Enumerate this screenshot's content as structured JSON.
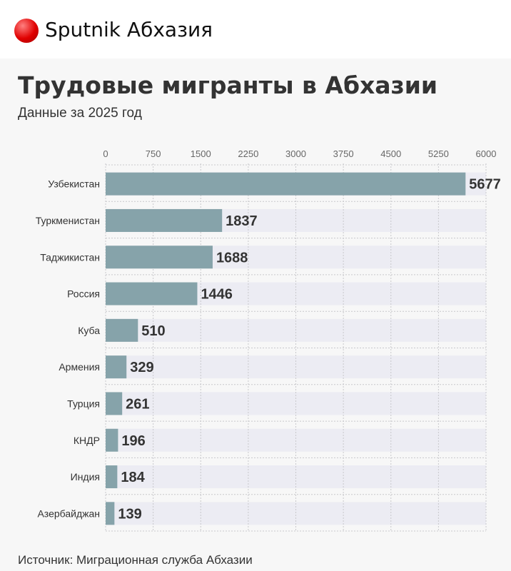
{
  "header": {
    "brand": "Sputnik Абхазия",
    "logo_icon": "red-ball-icon"
  },
  "chart_data": {
    "type": "bar",
    "title": "Трудовые мигранты в Абхазии",
    "subtitle": "Данные за 2025 год",
    "source": "Источник: Миграционная служба Абхазии",
    "categories": [
      "Узбекистан",
      "Туркменистан",
      "Таджикистан",
      "Россия",
      "Куба",
      "Армения",
      "Турция",
      "КНДР",
      "Индия",
      "Азербайджан"
    ],
    "values": [
      5677,
      1837,
      1688,
      1446,
      510,
      329,
      261,
      196,
      184,
      139
    ],
    "xticks": [
      "0",
      "750",
      "1500",
      "2250",
      "3000",
      "3750",
      "4500",
      "5250",
      "6000"
    ],
    "xlim": [
      0,
      6000
    ],
    "orientation": "horizontal",
    "grid": true,
    "bar_color": "#86a3aa"
  }
}
